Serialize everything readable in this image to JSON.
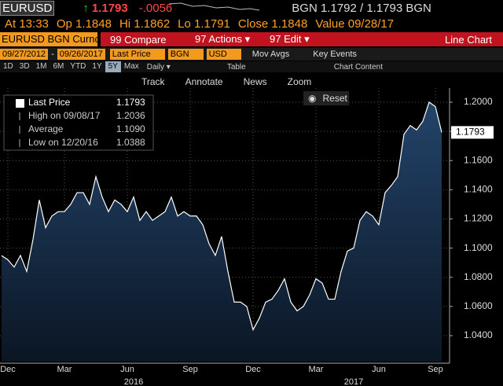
{
  "header": {
    "ticker": "EURUSD",
    "arrow": "↑",
    "last": "1.1793",
    "change": "-.0056",
    "bid_ask": "BGN 1.1792 / 1.1793 BGN"
  },
  "quote_line": [
    "At 13:33",
    "Op 1.1848",
    "Hi 1.1862",
    "Lo 1.1791",
    "Close 1.1848",
    "Value 09/28/17"
  ],
  "menu": {
    "security": "EURUSD BGN Curncy",
    "items": [
      "99 Compare",
      "97 Actions ▾",
      "97 Edit ▾"
    ],
    "chart_type": "Line Chart"
  },
  "settings": {
    "start": "09/27/2012",
    "dash": "-",
    "end": "09/26/2017",
    "field": "Last Price",
    "source": "BGN",
    "currency": "USD",
    "items": [
      "Mov Avgs",
      "Key Events"
    ]
  },
  "periods": [
    "1D",
    "3D",
    "1M",
    "6M",
    "YTD",
    "1Y",
    "5Y",
    "Max"
  ],
  "selected_period": 6,
  "frequency": "Daily ▾",
  "table": "Table",
  "chart_content": "Chart Content",
  "tools": [
    "Track",
    "Annotate",
    "News",
    "Zoom"
  ],
  "reset": "Reset",
  "chart_data": {
    "type": "area",
    "legend": [
      {
        "label": "Last Price",
        "value": "1.1793"
      },
      {
        "label": "High on 09/08/17",
        "value": "1.2036"
      },
      {
        "label": "Average",
        "value": "1.1090"
      },
      {
        "label": "Low on 12/20/16",
        "value": "1.0388"
      }
    ],
    "categories": [
      null,
      "Dec",
      null,
      null,
      null,
      null,
      null,
      null,
      null,
      null,
      "Mar",
      null,
      null,
      null,
      null,
      null,
      null,
      null,
      null,
      null,
      "Jun",
      null,
      null,
      null,
      null,
      null,
      null,
      null,
      null,
      null,
      "Sep",
      null,
      null,
      null,
      null,
      null,
      null,
      null,
      null,
      null,
      "Dec",
      null,
      null,
      null,
      null,
      null,
      null,
      null,
      null,
      null,
      "Mar",
      null,
      null,
      null,
      null,
      null,
      null,
      null,
      null,
      null,
      "Jun",
      null,
      null,
      null,
      null,
      null,
      null,
      null,
      null,
      "Sep",
      null
    ],
    "years": [
      null,
      null,
      null,
      null,
      null,
      null,
      null,
      null,
      null,
      null,
      null,
      null,
      null,
      null,
      null,
      null,
      null,
      null,
      null,
      null,
      null,
      "2016",
      null,
      null,
      null,
      null,
      null,
      null,
      null,
      null,
      null,
      null,
      null,
      null,
      null,
      null,
      null,
      null,
      null,
      null,
      null,
      null,
      null,
      null,
      null,
      null,
      null,
      null,
      null,
      null,
      null,
      null,
      null,
      null,
      null,
      null,
      "2017",
      null,
      null,
      null,
      null,
      null,
      null,
      null,
      null,
      null,
      null,
      null,
      null,
      null,
      null
    ],
    "series": [
      {
        "name": "Last Price",
        "color": "#ffffff",
        "values": [
          1.0949,
          1.092,
          1.087,
          1.095,
          1.084,
          1.106,
          1.133,
          1.114,
          1.122,
          1.125,
          1.125,
          1.13,
          1.138,
          1.138,
          1.13,
          1.149,
          1.135,
          1.125,
          1.133,
          1.13,
          1.125,
          1.135,
          1.119,
          1.125,
          1.119,
          1.122,
          1.125,
          1.135,
          1.122,
          1.125,
          1.122,
          1.122,
          1.116,
          1.103,
          1.095,
          1.108,
          1.084,
          1.063,
          1.063,
          1.06,
          1.044,
          1.052,
          1.063,
          1.065,
          1.071,
          1.079,
          1.063,
          1.057,
          1.06,
          1.068,
          1.079,
          1.076,
          1.065,
          1.065,
          1.084,
          1.098,
          1.1,
          1.119,
          1.125,
          1.122,
          1.116,
          1.138,
          1.143,
          1.149,
          1.178,
          1.184,
          1.181,
          1.187,
          1.2,
          1.197,
          1.1793
        ]
      }
    ],
    "ylim": [
      1.0222,
      1.2097
    ],
    "yticks": [
      {
        "value": 1.04,
        "label": "1.0400"
      },
      {
        "value": 1.06,
        "label": "1.0600"
      },
      {
        "value": 1.08,
        "label": "1.0800"
      },
      {
        "value": 1.1,
        "label": "1.1000"
      },
      {
        "value": 1.12,
        "label": "1.1200"
      },
      {
        "value": 1.14,
        "label": "1.1400"
      },
      {
        "value": 1.16,
        "label": "1.1600"
      },
      {
        "value": 1.18,
        "label": "1.1800"
      },
      {
        "value": 1.2,
        "label": "1.2000"
      }
    ],
    "grid": true
  }
}
